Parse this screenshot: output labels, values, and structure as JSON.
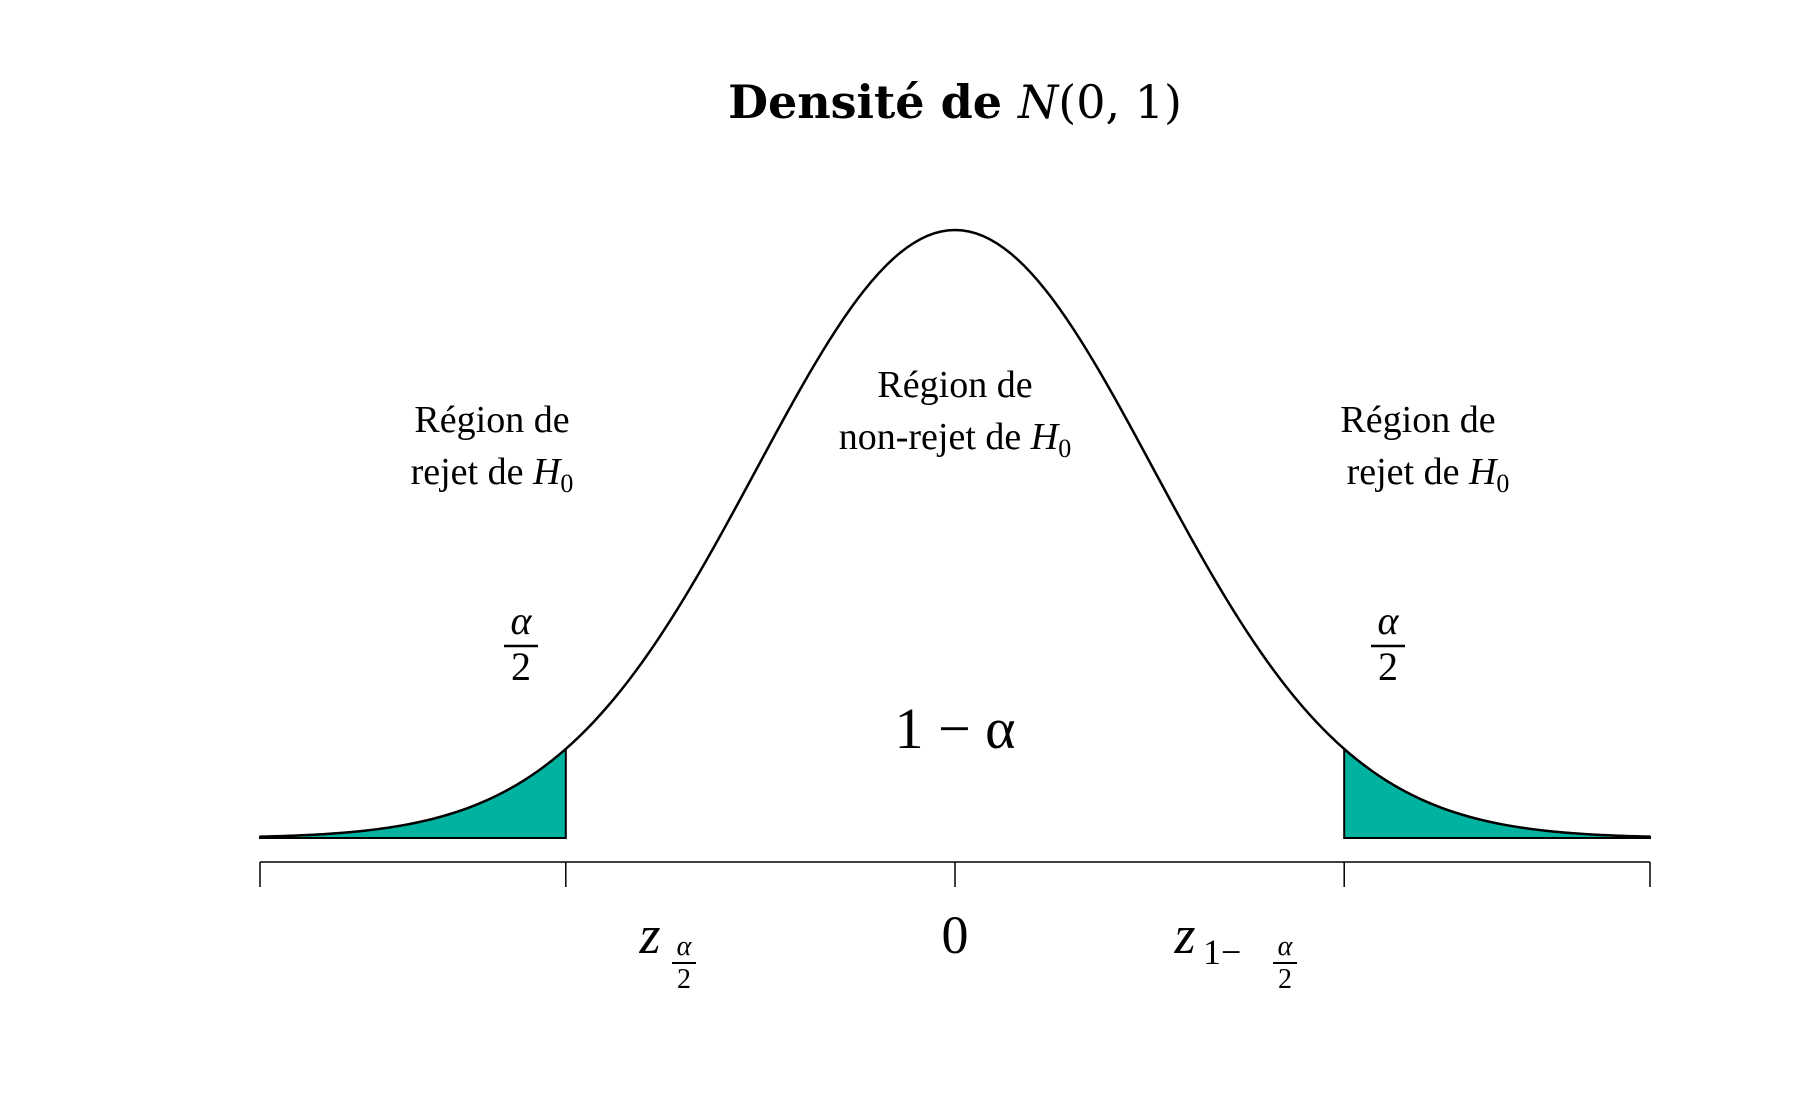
{
  "chart_data": {
    "type": "area",
    "title_prefix": "Densité de ",
    "title_math_script": "N",
    "title_math_suffix": "(0, 1)",
    "curve": "standard normal density",
    "mean": 0,
    "sd": 1,
    "xlim": [
      -3.5,
      3.5
    ],
    "shaded_tails": {
      "lower_cutoff": -1.96,
      "upper_cutoff": 1.96,
      "fill_color": "#00b3a1"
    },
    "x_ticks": [
      -3.5,
      -1.96,
      0,
      1.96,
      3.5
    ],
    "tick_labels": {
      "left_base": "z",
      "left_sub_num": "α",
      "left_sub_den": "2",
      "center": "0",
      "right_base": "z",
      "right_sub_prefix": "1−",
      "right_sub_num": "α",
      "right_sub_den": "2"
    },
    "annotations": {
      "left_region_line1": "Région de",
      "left_region_line2_text": "rejet de ",
      "left_region_line2_math": "H",
      "left_region_line2_sub": "0",
      "center_region_line1": "Région de",
      "center_region_line2_text": "non-rejet de ",
      "center_region_line2_math": "H",
      "center_region_line2_sub": "0",
      "right_region_line1": "Région de",
      "right_region_line2_text": "rejet de ",
      "right_region_line2_math": "H",
      "right_region_line2_sub": "0",
      "left_frac_num": "α",
      "left_frac_den": "2",
      "right_frac_num": "α",
      "right_frac_den": "2",
      "center_prob": "1 − α"
    },
    "colors": {
      "curve": "#000000",
      "tail_fill": "#00b3a1",
      "axis": "#000000"
    }
  }
}
